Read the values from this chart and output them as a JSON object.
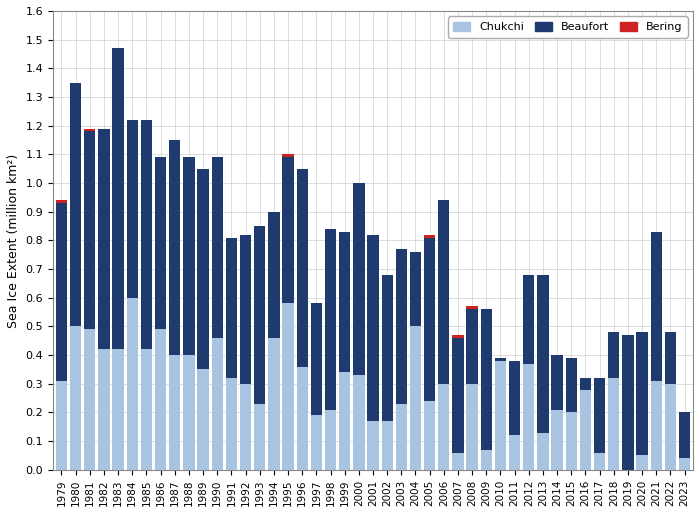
{
  "years": [
    1979,
    1980,
    1981,
    1982,
    1983,
    1984,
    1985,
    1986,
    1987,
    1988,
    1989,
    1990,
    1991,
    1992,
    1993,
    1994,
    1995,
    1996,
    1997,
    1998,
    1999,
    2000,
    2001,
    2002,
    2003,
    2004,
    2005,
    2006,
    2007,
    2008,
    2009,
    2010,
    2011,
    2012,
    2013,
    2014,
    2015,
    2016,
    2017,
    2018,
    2019,
    2020,
    2021,
    2022,
    2023
  ],
  "chukchi": [
    0.31,
    0.5,
    0.49,
    0.42,
    0.42,
    0.6,
    0.42,
    0.49,
    0.4,
    0.4,
    0.35,
    0.46,
    0.32,
    0.3,
    0.23,
    0.46,
    0.58,
    0.36,
    0.19,
    0.21,
    0.34,
    0.33,
    0.17,
    0.17,
    0.23,
    0.5,
    0.24,
    0.3,
    0.06,
    0.3,
    0.07,
    0.38,
    0.12,
    0.37,
    0.13,
    0.21,
    0.2,
    0.28,
    0.06,
    0.32,
    0.0,
    0.05,
    0.31,
    0.3,
    0.04
  ],
  "beaufort": [
    0.62,
    0.85,
    0.69,
    0.77,
    1.05,
    0.62,
    0.8,
    0.6,
    0.75,
    0.69,
    0.7,
    0.63,
    0.49,
    0.52,
    0.62,
    0.44,
    0.51,
    0.69,
    0.39,
    0.63,
    0.49,
    0.67,
    0.65,
    0.51,
    0.54,
    0.26,
    0.57,
    0.64,
    0.4,
    0.26,
    0.49,
    0.01,
    0.26,
    0.31,
    0.55,
    0.19,
    0.19,
    0.04,
    0.26,
    0.16,
    0.47,
    0.43,
    0.52,
    0.18,
    0.16
  ],
  "bering": [
    0.01,
    0.0,
    0.01,
    0.0,
    0.0,
    0.0,
    0.0,
    0.0,
    0.0,
    0.0,
    0.0,
    0.0,
    0.0,
    0.0,
    0.0,
    0.0,
    0.01,
    0.0,
    0.0,
    0.0,
    0.0,
    0.0,
    0.0,
    0.0,
    0.0,
    0.0,
    0.01,
    0.0,
    0.01,
    0.01,
    0.0,
    0.0,
    0.0,
    0.0,
    0.0,
    0.0,
    0.0,
    0.0,
    0.0,
    0.0,
    0.0,
    0.0,
    0.0,
    0.0,
    0.0
  ],
  "color_chukchi": "#a8c4e0",
  "color_beaufort": "#1e3a6e",
  "color_bering": "#cc2222",
  "ylabel": "Sea Ice Extent (million km²)",
  "ylim": [
    0.0,
    1.6
  ],
  "yticks": [
    0.0,
    0.1,
    0.2,
    0.3,
    0.4,
    0.5,
    0.6,
    0.7,
    0.8,
    0.9,
    1.0,
    1.1,
    1.2,
    1.3,
    1.4,
    1.5,
    1.6
  ],
  "legend_labels": [
    "Chukchi",
    "Beaufort",
    "Bering"
  ],
  "figsize": [
    7.0,
    5.13
  ],
  "dpi": 100,
  "bar_width": 0.8,
  "grid_color": "#d0d0d0",
  "spine_color": "#888888"
}
